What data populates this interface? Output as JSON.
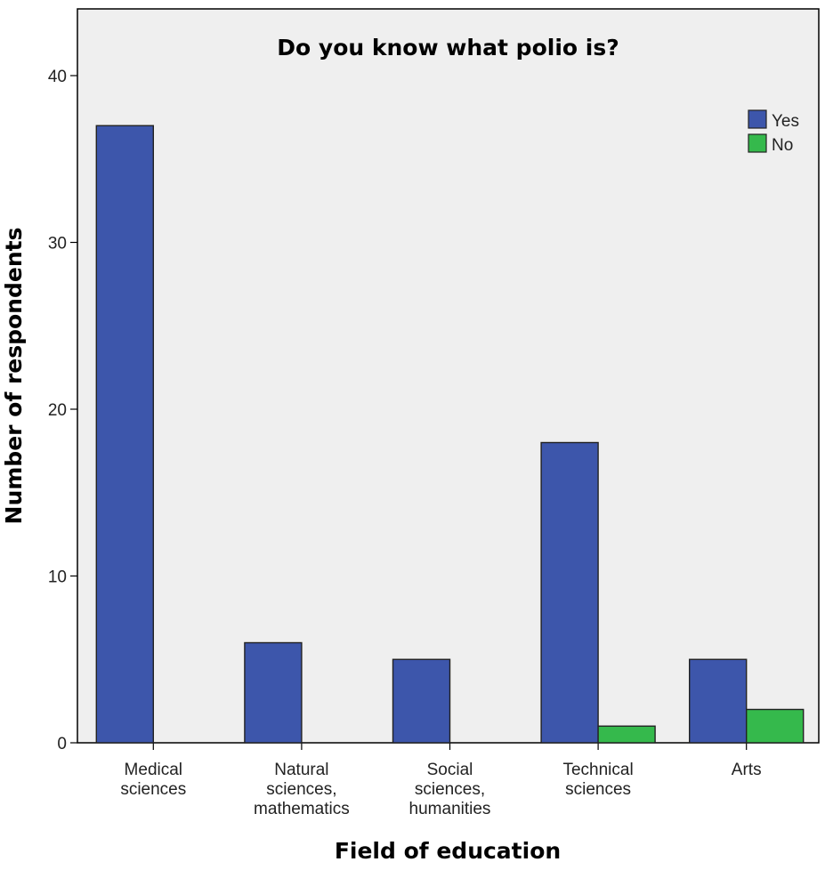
{
  "chart_data": {
    "type": "bar",
    "title": "Do you know what polio is?",
    "xlabel": "Field of education",
    "ylabel": "Number of respondents",
    "categories": [
      [
        "Medical",
        "sciences"
      ],
      [
        "Natural",
        "sciences,",
        "mathematics"
      ],
      [
        "Social",
        "sciences,",
        "humanities"
      ],
      [
        "Technical",
        "sciences"
      ],
      [
        "Arts"
      ]
    ],
    "series": [
      {
        "name": "Yes",
        "color": "#3d56ab",
        "values": [
          37,
          6,
          5,
          18,
          5
        ]
      },
      {
        "name": "No",
        "color": "#35b94c",
        "values": [
          0,
          0,
          0,
          1,
          2
        ]
      }
    ],
    "yticks": [
      0,
      10,
      20,
      30,
      40
    ],
    "ylim": [
      0,
      44
    ],
    "grid": false,
    "legend_position": "top-right"
  }
}
